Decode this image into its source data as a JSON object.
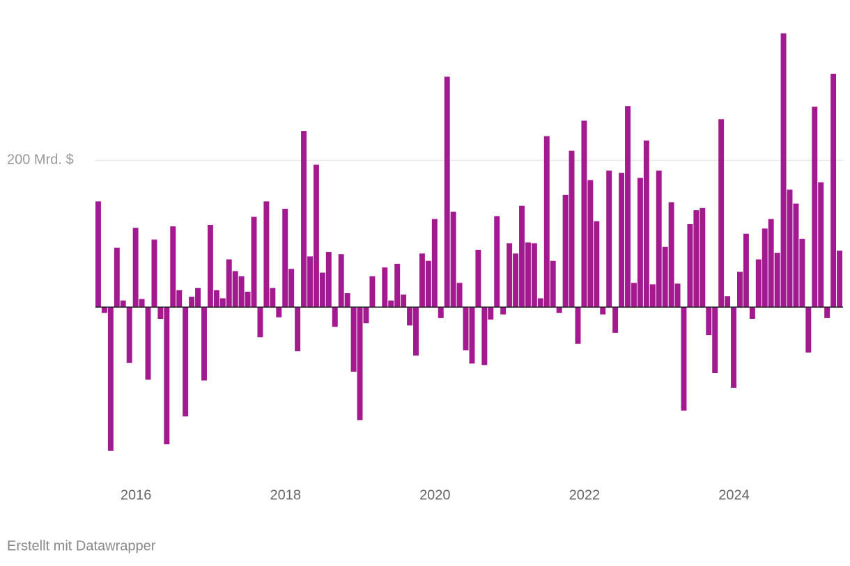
{
  "chart_data": {
    "type": "bar",
    "categories": [
      null,
      null,
      null,
      null,
      null,
      null,
      "2016",
      null,
      null,
      null,
      null,
      null,
      null,
      null,
      null,
      null,
      null,
      null,
      null,
      null,
      null,
      null,
      null,
      null,
      null,
      null,
      null,
      null,
      null,
      null,
      "2018",
      null,
      null,
      null,
      null,
      null,
      null,
      null,
      null,
      null,
      null,
      null,
      null,
      null,
      null,
      null,
      null,
      null,
      null,
      null,
      null,
      null,
      null,
      null,
      "2020",
      null,
      null,
      null,
      null,
      null,
      null,
      null,
      null,
      null,
      null,
      null,
      null,
      null,
      null,
      null,
      null,
      null,
      null,
      null,
      null,
      null,
      null,
      null,
      "2022",
      null,
      null,
      null,
      null,
      null,
      null,
      null,
      null,
      null,
      null,
      null,
      null,
      null,
      null,
      null,
      null,
      null,
      null,
      null,
      null,
      null,
      null,
      null,
      "2024",
      null,
      null,
      null,
      null,
      null,
      null,
      null,
      null,
      null,
      null,
      null,
      null,
      null,
      null,
      null,
      null,
      null
    ],
    "values": [
      144,
      -8,
      -196,
      81,
      9,
      -76,
      108,
      11,
      -99,
      92,
      -16,
      -187,
      110,
      23,
      -149,
      14,
      26,
      -100,
      112,
      23,
      12,
      65,
      49,
      42,
      21,
      123,
      -41,
      144,
      26,
      -14,
      134,
      52,
      -60,
      240,
      69,
      194,
      47,
      75,
      -27,
      72,
      19,
      -88,
      -154,
      -22,
      42,
      0,
      54,
      9,
      59,
      17,
      -25,
      -66,
      73,
      63,
      120,
      -15,
      314,
      130,
      33,
      -59,
      -77,
      78,
      -79,
      -17,
      124,
      -10,
      87,
      73,
      138,
      88,
      87,
      12,
      233,
      63,
      -8,
      153,
      213,
      -50,
      254,
      173,
      117,
      -10,
      186,
      -35,
      183,
      274,
      33,
      176,
      227,
      31,
      186,
      82,
      143,
      32,
      -141,
      113,
      132,
      135,
      -38,
      -90,
      256,
      15,
      -110,
      48,
      100,
      -16,
      65,
      107,
      120,
      74,
      373,
      160,
      141,
      93,
      -62,
      273,
      170,
      -15,
      318,
      77
    ],
    "color": "#a3198f",
    "ylim": [
      -220,
      390
    ],
    "yticks": [
      {
        "value": 200,
        "label": "200 Mrd. $"
      }
    ],
    "grid": true,
    "footer": "Erstellt mit Datawrapper"
  }
}
